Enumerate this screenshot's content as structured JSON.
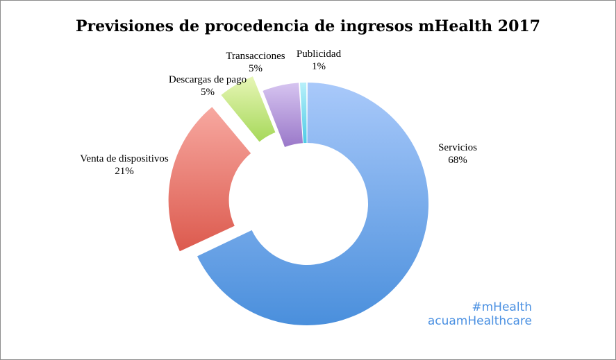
{
  "chart_data": {
    "type": "pie",
    "title": "Previsiones de procedencia de ingresos mHealth 2017",
    "slices": [
      {
        "label": "Servicios",
        "value": 68,
        "pct_label": "68%",
        "color_light": "#a9c9fa",
        "color_dark": "#4a8fdc",
        "exploded": false
      },
      {
        "label": "Venta de dispositivos",
        "value": 21,
        "pct_label": "21%",
        "color_light": "#f7a8a0",
        "color_dark": "#dc5a4e",
        "exploded": true
      },
      {
        "label": "Descargas de pago",
        "value": 5,
        "pct_label": "5%",
        "color_light": "#e7f6b6",
        "color_dark": "#a6d85a",
        "exploded": true
      },
      {
        "label": "Transacciones",
        "value": 5,
        "pct_label": "5%",
        "color_light": "#d6c4f0",
        "color_dark": "#9a78c9",
        "exploded": false
      },
      {
        "label": "Publicidad",
        "value": 1,
        "pct_label": "1%",
        "color_light": "#b8f0fa",
        "color_dark": "#4fcbe6",
        "exploded": false
      }
    ],
    "legend": "none",
    "donut": true
  },
  "watermark": {
    "line1": "#mHealth",
    "line2": "acuamHealthcare"
  }
}
